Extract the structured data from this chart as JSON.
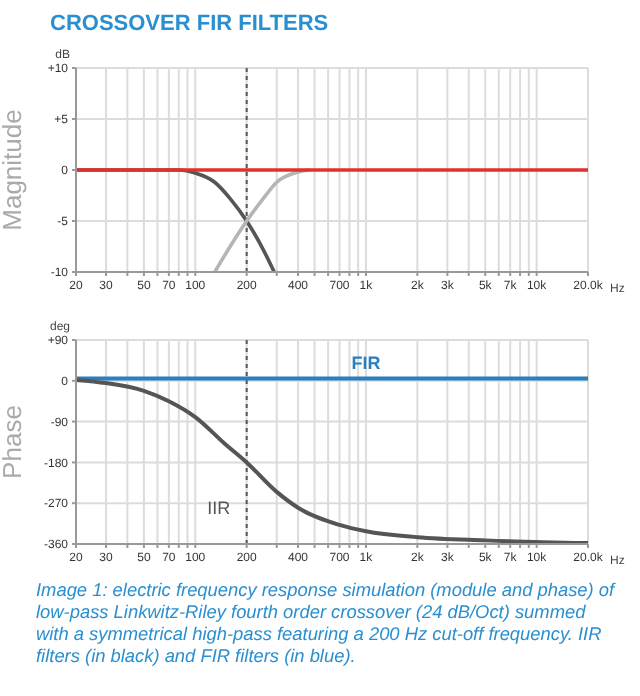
{
  "chart_data": [
    {
      "type": "line",
      "title": "CROSSOVER FIR FILTERS",
      "ylabel": "Magnitude",
      "annotations": [
        "dB",
        "Hz"
      ],
      "log": "x",
      "grid": true,
      "xlim": [
        20,
        20000
      ],
      "ylim": [
        -10,
        10
      ],
      "xticks": [
        20,
        30,
        {
          "value": 40,
          "label": null
        },
        50,
        {
          "value": 60,
          "label": null
        },
        70,
        {
          "value": 80,
          "label": null
        },
        {
          "value": 90,
          "label": null
        },
        100,
        200,
        {
          "value": 300,
          "label": null
        },
        400,
        {
          "value": 500,
          "label": null
        },
        {
          "value": 600,
          "label": null
        },
        700,
        {
          "value": 800,
          "label": null
        },
        {
          "value": 900,
          "label": null
        },
        {
          "value": 1000,
          "label": "1k"
        },
        {
          "value": 2000,
          "label": "2k"
        },
        {
          "value": 3000,
          "label": "3k"
        },
        {
          "value": 4000,
          "label": null
        },
        {
          "value": 5000,
          "label": "5k"
        },
        {
          "value": 6000,
          "label": null
        },
        {
          "value": 7000,
          "label": "7k"
        },
        {
          "value": 8000,
          "label": null
        },
        {
          "value": 9000,
          "label": null
        },
        {
          "value": 10000,
          "label": "10k"
        },
        {
          "value": 20000,
          "label": "20.0k"
        }
      ],
      "yticks": [
        {
          "value": 10,
          "label": "+10"
        },
        {
          "value": 5,
          "label": "+5"
        },
        0,
        -5,
        -10
      ],
      "ref_lines": [
        {
          "axis": "x",
          "value": 200,
          "color": "#555555",
          "line_style": "dotted"
        }
      ],
      "series": [
        {
          "color": "#555555",
          "x": [
            20,
            80,
            100,
            130,
            160,
            200,
            250,
            290
          ],
          "values": [
            0,
            0,
            -0.3,
            -1.2,
            -2.8,
            -5,
            -7.8,
            -10
          ]
        },
        {
          "color": "#b5b5b5",
          "x": [
            130,
            160,
            200,
            250,
            300,
            400,
            460
          ],
          "values": [
            -10,
            -7.5,
            -5,
            -2.8,
            -1.2,
            -0.2,
            0
          ]
        },
        {
          "color": "#e0312f",
          "x": [
            20,
            20000
          ],
          "values": [
            0,
            0
          ]
        }
      ]
    },
    {
      "type": "line",
      "ylabel": "Phase",
      "annotations": [
        "deg",
        "Hz",
        "Image 1: electric frequency response simulation (module and phase) of low-pass Linkwitz-Riley fourth order crossover (24 dB/Oct) summed with a symmetrical high-pass featuring a 200 Hz cut-off frequency. IIR filters (in black) and FIR filters (in blue)."
      ],
      "log": "x",
      "grid": true,
      "xlim": [
        20,
        20000
      ],
      "ylim": [
        -360,
        90
      ],
      "xticks": [
        20,
        30,
        {
          "value": 40,
          "label": null
        },
        50,
        {
          "value": 60,
          "label": null
        },
        70,
        {
          "value": 80,
          "label": null
        },
        {
          "value": 90,
          "label": null
        },
        100,
        200,
        {
          "value": 300,
          "label": null
        },
        400,
        {
          "value": 500,
          "label": null
        },
        {
          "value": 600,
          "label": null
        },
        700,
        {
          "value": 800,
          "label": null
        },
        {
          "value": 900,
          "label": null
        },
        {
          "value": 1000,
          "label": "1k"
        },
        {
          "value": 2000,
          "label": "2k"
        },
        {
          "value": 3000,
          "label": "3k"
        },
        {
          "value": 4000,
          "label": null
        },
        {
          "value": 5000,
          "label": "5k"
        },
        {
          "value": 6000,
          "label": null
        },
        {
          "value": 7000,
          "label": "7k"
        },
        {
          "value": 8000,
          "label": null
        },
        {
          "value": 9000,
          "label": null
        },
        {
          "value": 10000,
          "label": "10k"
        },
        {
          "value": 20000,
          "label": "20.0k"
        }
      ],
      "yticks": [
        {
          "value": 90,
          "label": "+90"
        },
        0,
        -90,
        -180,
        -270,
        -360
      ],
      "ref_lines": [
        {
          "axis": "x",
          "value": 200,
          "color": "#555555",
          "line_style": "dotted"
        }
      ],
      "series": [
        {
          "name": "FIR",
          "color": "#2a7fc0",
          "x": [
            20,
            1000,
            20000
          ],
          "values": [
            5,
            5,
            5
          ]
        },
        {
          "name": "IIR",
          "color": "#555555",
          "x": [
            20,
            30,
            50,
            70,
            100,
            150,
            200,
            300,
            400,
            700,
            1000,
            2000,
            5000,
            20000
          ],
          "values": [
            2,
            -5,
            -22,
            -45,
            -80,
            -140,
            -180,
            -245,
            -280,
            -318,
            -332,
            -345,
            -352,
            -358
          ]
        }
      ]
    }
  ]
}
